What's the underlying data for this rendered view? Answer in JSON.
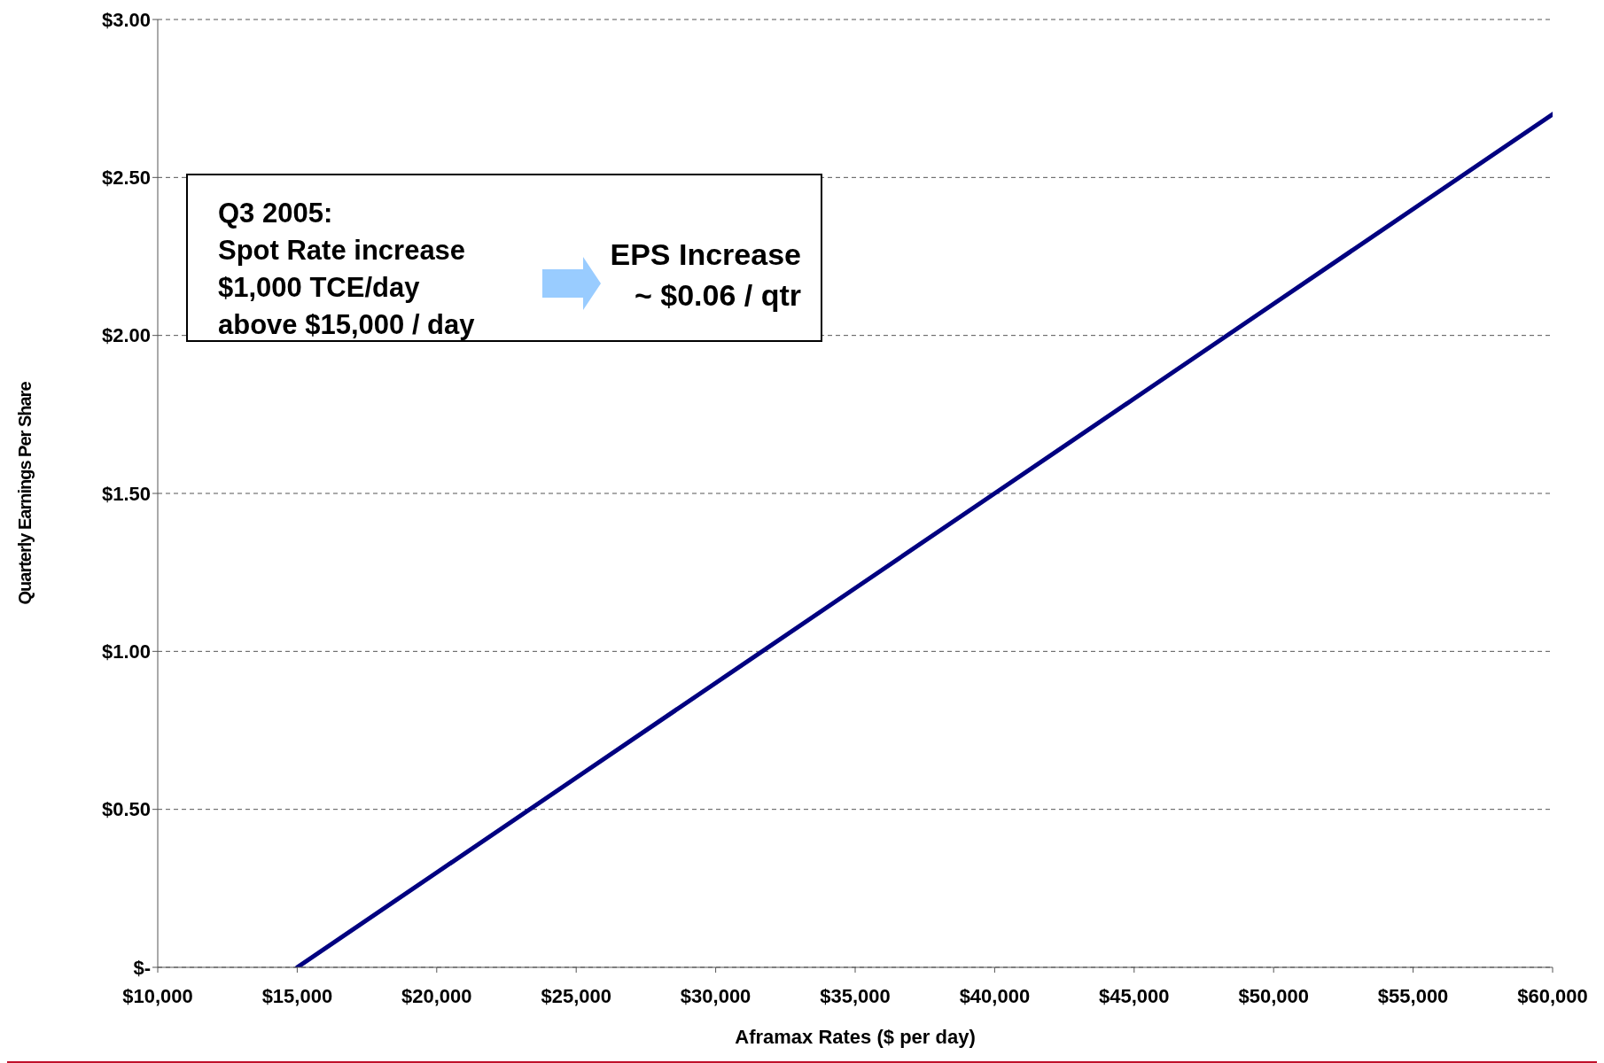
{
  "chart_data": {
    "type": "line",
    "xlabel": "Aframax Rates ($ per day)",
    "ylabel": "Quarterly Earnings Per Share",
    "x": [
      15000,
      20000,
      25000,
      30000,
      35000,
      40000,
      45000,
      50000,
      55000,
      60000
    ],
    "series": [
      {
        "color": "#000080",
        "values": [
          0,
          0.3,
          0.6,
          0.9,
          1.2,
          1.5,
          1.8,
          2.1,
          2.4,
          2.7
        ]
      }
    ],
    "xlim": [
      10000,
      60000
    ],
    "xticks": [
      {
        "value": 10000,
        "label": "$10,000"
      },
      {
        "value": 15000,
        "label": "$15,000"
      },
      {
        "value": 20000,
        "label": "$20,000"
      },
      {
        "value": 25000,
        "label": "$25,000"
      },
      {
        "value": 30000,
        "label": "$30,000"
      },
      {
        "value": 35000,
        "label": "$35,000"
      },
      {
        "value": 40000,
        "label": "$40,000"
      },
      {
        "value": 45000,
        "label": "$45,000"
      },
      {
        "value": 50000,
        "label": "$50,000"
      },
      {
        "value": 55000,
        "label": "$55,000"
      },
      {
        "value": 60000,
        "label": "$60,000"
      }
    ],
    "ylim": [
      0,
      3
    ],
    "yticks": [
      {
        "value": 0,
        "label": "$-"
      },
      {
        "value": 0.5,
        "label": "$0.50"
      },
      {
        "value": 1,
        "label": "$1.00"
      },
      {
        "value": 1.5,
        "label": "$1.50"
      },
      {
        "value": 2,
        "label": "$2.00"
      },
      {
        "value": 2.5,
        "label": "$2.50"
      },
      {
        "value": 3,
        "label": "$3.00"
      }
    ],
    "grid": "y",
    "marker": "none",
    "line_style": "solid",
    "legend": false,
    "annotations": [
      "Q3 2005:\nSpot Rate increase\n$1,000 TCE/day\nabove $15,000 / day",
      "EPS Increase\n~ $0.06 / qtr"
    ]
  }
}
